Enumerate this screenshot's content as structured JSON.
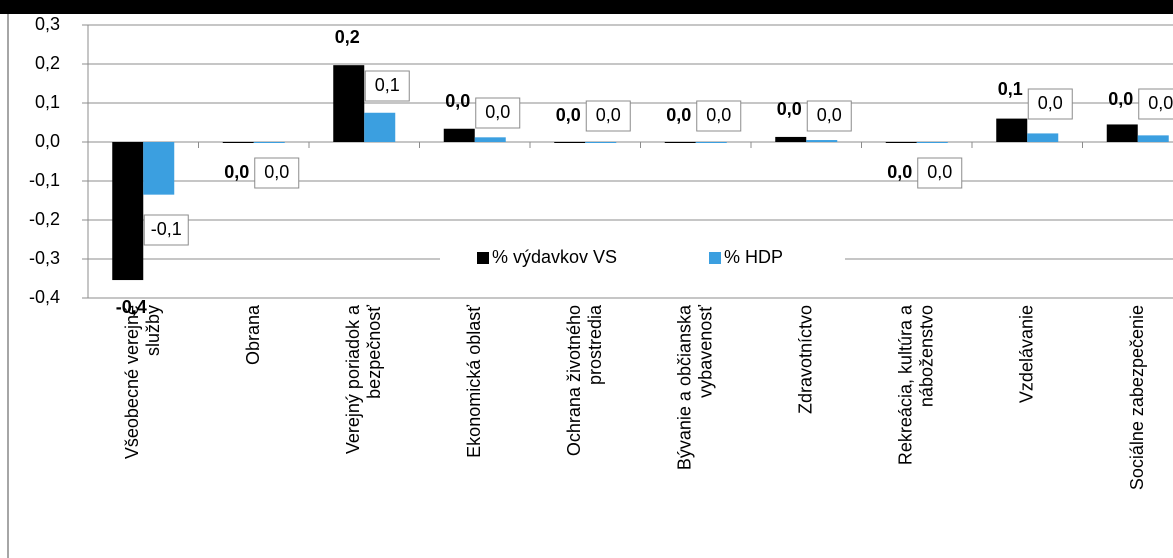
{
  "chart_data": {
    "type": "bar",
    "categories": [
      "Všeobecné verejné\nslužby",
      "Obrana",
      "Verejný poriadok a\nbezpečnosť",
      "Ekonomická oblasť",
      "Ochrana životného\nprostredia",
      "Bývanie a občianska\nvybavenosť",
      "Zdravotníctvo",
      "Rekreácia, kultúra a\nnáboženstvo",
      "Vzdelávanie",
      "Sociálne zabezpečenie"
    ],
    "series": [
      {
        "name": "% výdavkov VS",
        "color": "#000000",
        "values": [
          -0.354,
          -0.002,
          0.197,
          0.034,
          0,
          0,
          0.013,
          0,
          0.06,
          0.045
        ],
        "value_labels": [
          "-0,4",
          "0,0",
          "0,2",
          "0,0",
          "0,0",
          "0,0",
          "0,0",
          "0,0",
          "0,1",
          "0,0"
        ]
      },
      {
        "name": "% HDP",
        "color": "#3b9fe0",
        "values": [
          -0.135,
          0,
          0.075,
          0.012,
          0,
          0,
          0.005,
          0,
          0.022,
          0.017
        ],
        "value_labels": [
          "-0,1",
          "0,0",
          "0,1",
          "0,0",
          "0,0",
          "0,0",
          "0,0",
          "0,0",
          "0,0",
          "0,0"
        ]
      }
    ],
    "ylim": [
      -0.4,
      0.3
    ],
    "yticks": [
      {
        "value": -0.4,
        "label": "-0,4"
      },
      {
        "value": -0.3,
        "label": "-0,3"
      },
      {
        "value": -0.2,
        "label": "-0,2"
      },
      {
        "value": -0.1,
        "label": "-0,1"
      },
      {
        "value": 0,
        "label": "0,0"
      },
      {
        "value": 0.1,
        "label": "0,1"
      },
      {
        "value": 0.2,
        "label": "0,2"
      },
      {
        "value": 0.3,
        "label": "0,3"
      }
    ],
    "grid": true
  }
}
